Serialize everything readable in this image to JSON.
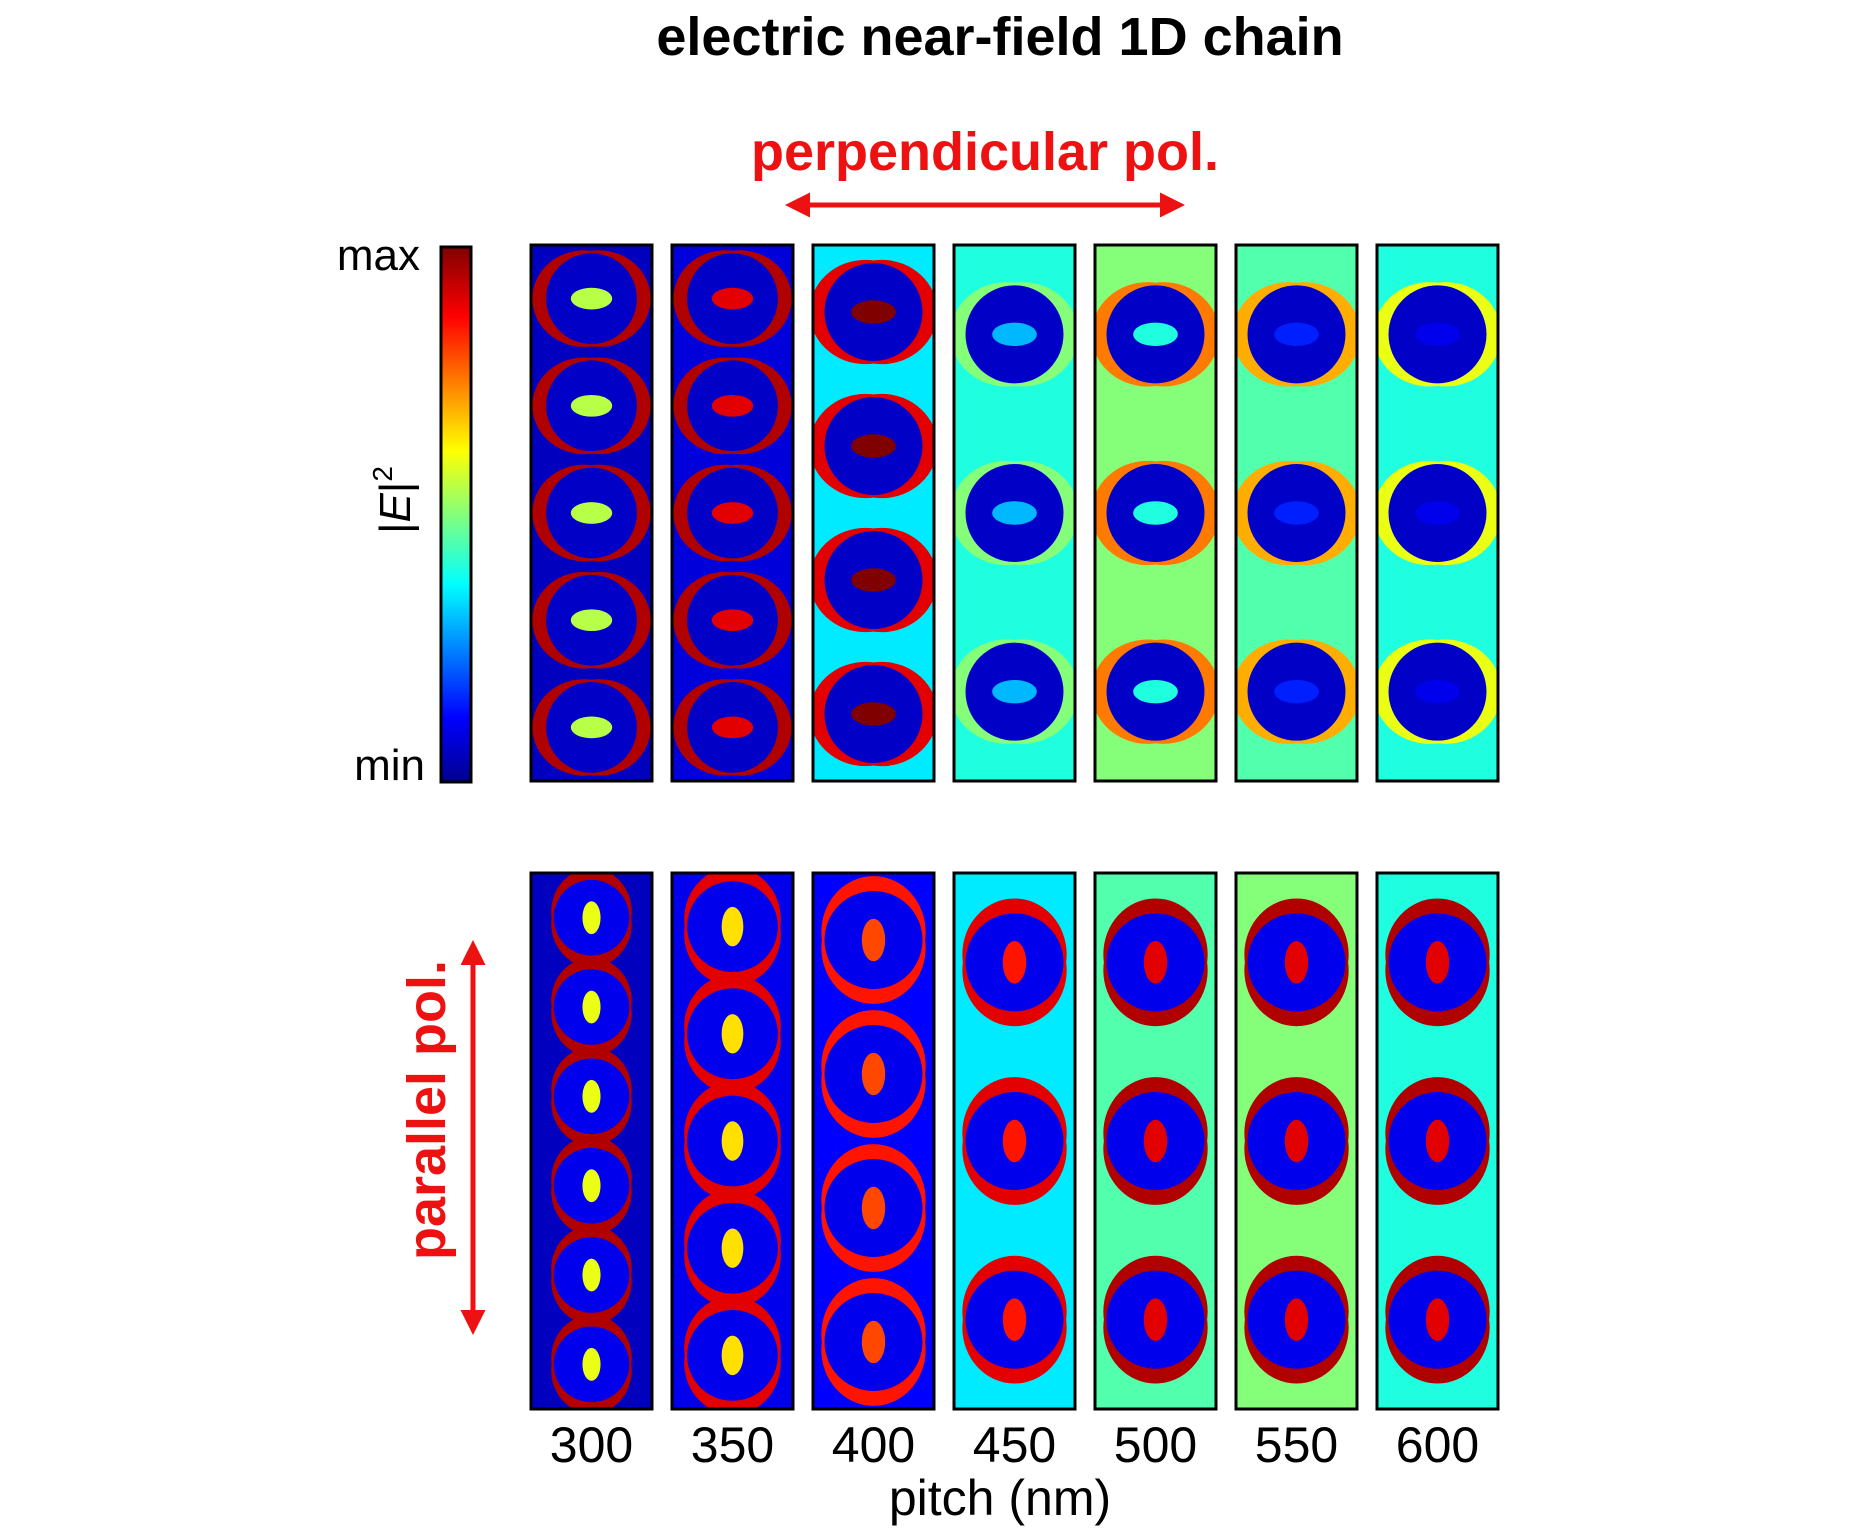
{
  "figure": {
    "title": "electric near-field 1D chain",
    "top_label": "perpendicular pol.",
    "bottom_label": "parallel pol.",
    "colorbar": {
      "quantity_prefix": "|",
      "quantity_symbol": "E",
      "quantity_suffix": "|",
      "quantity_power": "2",
      "max_label": "max",
      "min_label": "min"
    },
    "x_axis": {
      "label": "pitch (nm)",
      "ticks": [
        "300",
        "350",
        "400",
        "450",
        "500",
        "550",
        "600"
      ]
    },
    "arrow_color": "#ee1111",
    "colormap": [
      "#00008f",
      "#0000ff",
      "#00ffff",
      "#ffff00",
      "#ff0000",
      "#800000"
    ]
  },
  "panels": {
    "perpendicular": [
      {
        "pitch": "300",
        "n_particles": 5,
        "inner": 0.55,
        "bg": 0.05,
        "ring": 0.95
      },
      {
        "pitch": "350",
        "n_particles": 5,
        "inner": 0.9,
        "bg": 0.08,
        "ring": 0.95
      },
      {
        "pitch": "400",
        "n_particles": 4,
        "inner": 1.0,
        "bg": 0.35,
        "ring": 0.9
      },
      {
        "pitch": "450",
        "n_particles": 3,
        "inner": 0.3,
        "bg": 0.4,
        "ring": 0.5
      },
      {
        "pitch": "500",
        "n_particles": 3,
        "inner": 0.4,
        "bg": 0.5,
        "ring": 0.75
      },
      {
        "pitch": "550",
        "n_particles": 3,
        "inner": 0.15,
        "bg": 0.45,
        "ring": 0.7
      },
      {
        "pitch": "600",
        "n_particles": 3,
        "inner": 0.1,
        "bg": 0.4,
        "ring": 0.6
      }
    ],
    "parallel": [
      {
        "pitch": "300",
        "n_particles": 6,
        "inner": 0.6,
        "bg": 0.05,
        "lobe": 0.95
      },
      {
        "pitch": "350",
        "n_particles": 5,
        "inner": 0.65,
        "bg": 0.1,
        "lobe": 0.9
      },
      {
        "pitch": "400",
        "n_particles": 4,
        "inner": 0.8,
        "bg": 0.12,
        "lobe": 0.85
      },
      {
        "pitch": "450",
        "n_particles": 3,
        "inner": 0.85,
        "bg": 0.35,
        "lobe": 0.9
      },
      {
        "pitch": "500",
        "n_particles": 3,
        "inner": 0.9,
        "bg": 0.45,
        "lobe": 0.95
      },
      {
        "pitch": "550",
        "n_particles": 3,
        "inner": 0.9,
        "bg": 0.5,
        "lobe": 0.95
      },
      {
        "pitch": "600",
        "n_particles": 3,
        "inner": 0.9,
        "bg": 0.4,
        "lobe": 0.95
      }
    ]
  }
}
